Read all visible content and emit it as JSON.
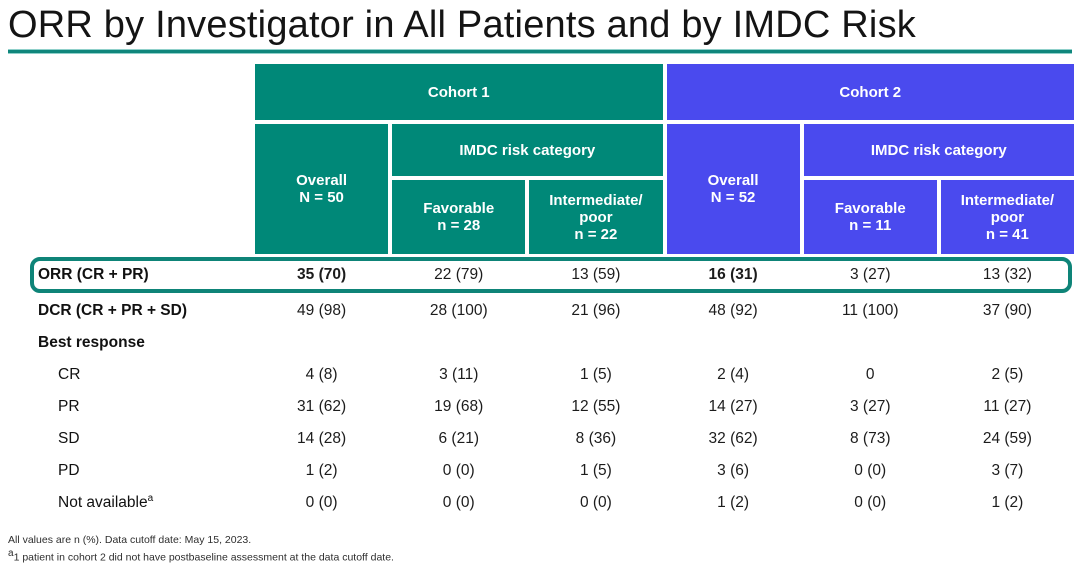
{
  "title": "ORR by Investigator in All Patients and by IMDC Risk",
  "colors": {
    "teal": "#008878",
    "blue": "#4a4aee",
    "highlight_border": "#0e8478",
    "title_rule": "#0f867c"
  },
  "header": {
    "cohort1": {
      "label": "Cohort 1",
      "overall": "Overall\nN = 50",
      "imdc": "IMDC risk category",
      "favorable": "Favorable\nn = 28",
      "intermediate_poor": "Intermediate/\npoor\nn = 22"
    },
    "cohort2": {
      "label": "Cohort 2",
      "overall": "Overall\nN = 52",
      "imdc": "IMDC risk category",
      "favorable": "Favorable\nn = 11",
      "intermediate_poor": "Intermediate/\npoor\nn = 41"
    }
  },
  "rows": [
    {
      "label": "ORR (CR + PR)",
      "values": [
        "35 (70)",
        "22 (79)",
        "13 (59)",
        "16 (31)",
        "3 (27)",
        "13 (32)"
      ],
      "highlighted": true
    },
    {
      "label": "DCR (CR + PR + SD)",
      "values": [
        "49 (98)",
        "28 (100)",
        "21 (96)",
        "48 (92)",
        "11 (100)",
        "37 (90)"
      ]
    },
    {
      "label": "Best response",
      "values": [
        "",
        "",
        "",
        "",
        "",
        ""
      ]
    },
    {
      "label": "CR",
      "values": [
        "4 (8)",
        "3 (11)",
        "1 (5)",
        "2 (4)",
        "0",
        "2 (5)"
      ]
    },
    {
      "label": "PR",
      "values": [
        "31 (62)",
        "19 (68)",
        "12 (55)",
        "14 (27)",
        "3 (27)",
        "11 (27)"
      ]
    },
    {
      "label": "SD",
      "values": [
        "14 (28)",
        "6 (21)",
        "8 (36)",
        "32 (62)",
        "8 (73)",
        "24 (59)"
      ]
    },
    {
      "label": "PD",
      "values": [
        "1 (2)",
        "0 (0)",
        "1 (5)",
        "3 (6)",
        "0 (0)",
        "3 (7)"
      ]
    },
    {
      "label": "Not available",
      "sup": "a",
      "values": [
        "0 (0)",
        "0 (0)",
        "0 (0)",
        "1 (2)",
        "0 (0)",
        "1 (2)"
      ]
    }
  ],
  "footnotes": {
    "line1": "All values are n (%). Data cutoff date: May 15, 2023.",
    "line2_sup": "a",
    "line2": "1 patient in cohort 2 did not have postbaseline assessment at the data cutoff date."
  },
  "chart_data": {
    "type": "table",
    "title": "ORR by Investigator in All Patients and by IMDC Risk",
    "column_groups": [
      "Cohort 1",
      "Cohort 1",
      "Cohort 1",
      "Cohort 2",
      "Cohort 2",
      "Cohort 2"
    ],
    "columns": [
      "Cohort 1 Overall N = 50",
      "Cohort 1 IMDC Favorable n = 28",
      "Cohort 1 IMDC Intermediate/poor n = 22",
      "Cohort 2 Overall N = 52",
      "Cohort 2 IMDC Favorable n = 11",
      "Cohort 2 IMDC Intermediate/poor n = 41"
    ],
    "rows": [
      {
        "label": "ORR (CR + PR)",
        "values": [
          "35 (70)",
          "22 (79)",
          "13 (59)",
          "16 (31)",
          "3 (27)",
          "13 (32)"
        ]
      },
      {
        "label": "DCR (CR + PR + SD)",
        "values": [
          "49 (98)",
          "28 (100)",
          "21 (96)",
          "48 (92)",
          "11 (100)",
          "37 (90)"
        ]
      },
      {
        "label": "Best response: CR",
        "values": [
          "4 (8)",
          "3 (11)",
          "1 (5)",
          "2 (4)",
          "0",
          "2 (5)"
        ]
      },
      {
        "label": "Best response: PR",
        "values": [
          "31 (62)",
          "19 (68)",
          "12 (55)",
          "14 (27)",
          "3 (27)",
          "11 (27)"
        ]
      },
      {
        "label": "Best response: SD",
        "values": [
          "14 (28)",
          "6 (21)",
          "8 (36)",
          "32 (62)",
          "8 (73)",
          "24 (59)"
        ]
      },
      {
        "label": "Best response: PD",
        "values": [
          "1 (2)",
          "0 (0)",
          "1 (5)",
          "3 (6)",
          "0 (0)",
          "3 (7)"
        ]
      },
      {
        "label": "Best response: Not available",
        "values": [
          "0 (0)",
          "0 (0)",
          "0 (0)",
          "1 (2)",
          "0 (0)",
          "1 (2)"
        ]
      }
    ],
    "units": "n (%)"
  }
}
